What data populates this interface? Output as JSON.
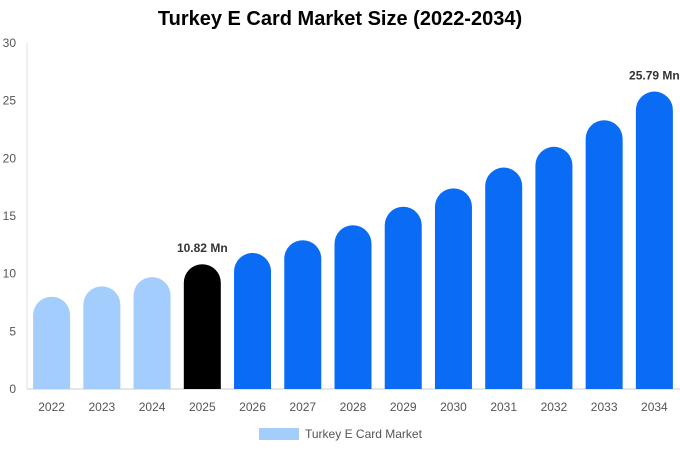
{
  "chart_data": {
    "type": "bar",
    "title": "Turkey E Card Market Size (2022-2034)",
    "categories": [
      "2022",
      "2023",
      "2024",
      "2025",
      "2026",
      "2027",
      "2028",
      "2029",
      "2030",
      "2031",
      "2032",
      "2033",
      "2034"
    ],
    "series": [
      {
        "name": "Turkey E Card Market",
        "values": [
          8.0,
          8.9,
          9.7,
          10.82,
          11.8,
          12.9,
          14.2,
          15.8,
          17.4,
          19.2,
          21.0,
          23.3,
          25.79
        ]
      }
    ],
    "ylim": [
      0,
      30
    ],
    "yticks": [
      0,
      5,
      10,
      15,
      20,
      25,
      30
    ],
    "xlabel": "",
    "ylabel": "",
    "grid": false,
    "legend": "bottom-center",
    "data_labels": [
      {
        "index": 3,
        "text": "10.82 Mn"
      },
      {
        "index": 12,
        "text": "25.79 Mn"
      }
    ],
    "colors": {
      "historical": "#a3cdfd",
      "current": "#000000",
      "forecast": "#0a6cf5",
      "legend_swatch": "#a3cdfd"
    },
    "bar_color_groups": [
      "historical",
      "historical",
      "historical",
      "current",
      "forecast",
      "forecast",
      "forecast",
      "forecast",
      "forecast",
      "forecast",
      "forecast",
      "forecast",
      "forecast"
    ]
  }
}
